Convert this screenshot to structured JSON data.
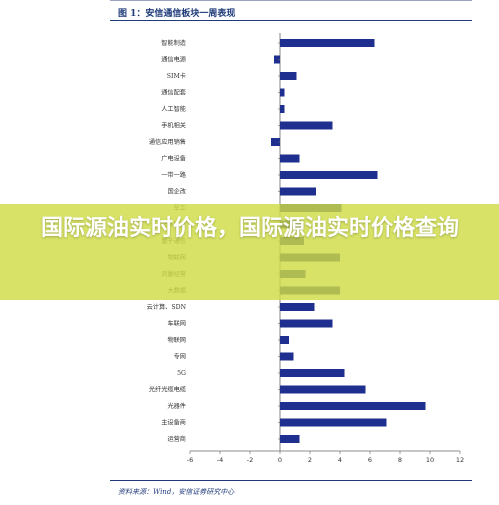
{
  "figure": {
    "title": "图 1：安信通信板块一周表现",
    "source": "资料来源：Wind，安信证券研究中心"
  },
  "banner": {
    "headline": "国际源油实时价格，国际源油实时价格查询"
  },
  "chart_data": {
    "type": "bar",
    "orientation": "horizontal",
    "title": "图 1：安信通信板块一周表现",
    "xlabel": "",
    "ylabel": "",
    "xlim": [
      -6,
      12
    ],
    "xticks": [
      -6,
      -4,
      -2,
      0,
      2,
      4,
      6,
      8,
      10,
      12
    ],
    "grid": false,
    "bar_color": "#1f2f8f",
    "categories": [
      "智能制造",
      "通信电源",
      "SIM卡",
      "通信配套",
      "人工智能",
      "手机相关",
      "通信应用销售",
      "广电设备",
      "一带一路",
      "国企改",
      "军工",
      "北斗导航",
      "量子通信",
      "物联网",
      "流量经营",
      "大数据",
      "云计算、SDN",
      "车联网",
      "物联网",
      "专网",
      "5G",
      "光纤光缆电缆",
      "光器件",
      "主设备商",
      "运营商"
    ],
    "values": [
      6.3,
      -0.4,
      1.1,
      0.3,
      0.3,
      3.5,
      -0.6,
      1.3,
      6.5,
      2.4,
      4.1,
      1.4,
      1.6,
      4.0,
      1.7,
      4.0,
      2.3,
      3.5,
      0.6,
      0.9,
      4.3,
      5.7,
      9.7,
      7.1,
      1.3
    ]
  }
}
